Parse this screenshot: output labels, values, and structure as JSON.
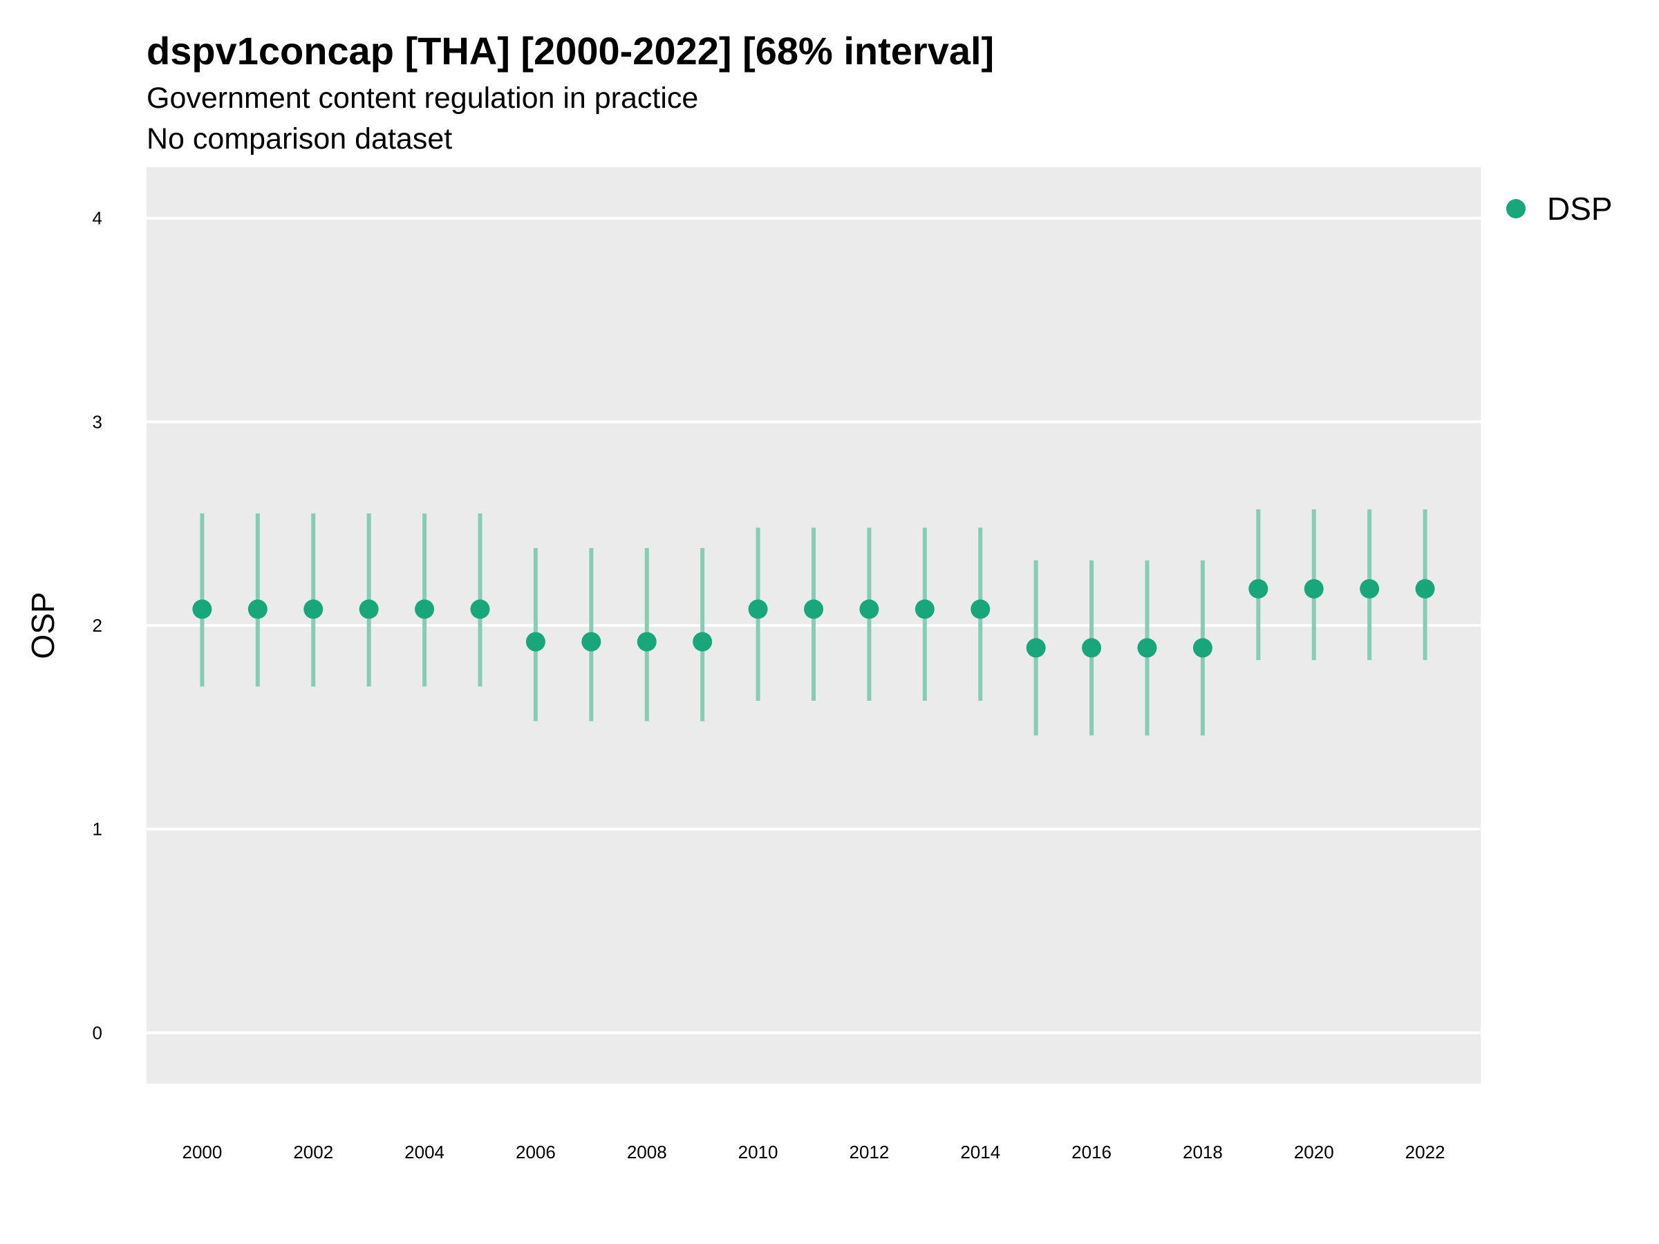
{
  "chart_data": {
    "type": "scatter",
    "title": "dspv1concap [THA] [2000-2022] [68% interval]",
    "subtitle": "Government content regulation in practice",
    "subtitle2": "No comparison dataset",
    "xlabel": "",
    "ylabel": "OSP",
    "xlim": [
      1999,
      2023
    ],
    "ylim": [
      -0.25,
      4.25
    ],
    "x_ticks": [
      "2000",
      "2002",
      "2004",
      "2006",
      "2008",
      "2010",
      "2012",
      "2014",
      "2016",
      "2018",
      "2020",
      "2022"
    ],
    "y_ticks": [
      "0",
      "1",
      "2",
      "3",
      "4"
    ],
    "grid": true,
    "legend_position": "right",
    "series": [
      {
        "name": "DSP",
        "color": "#1aa67b",
        "interval_color": "#86cdb3",
        "x": [
          2000,
          2001,
          2002,
          2003,
          2004,
          2005,
          2006,
          2007,
          2008,
          2009,
          2010,
          2011,
          2012,
          2013,
          2014,
          2015,
          2016,
          2017,
          2018,
          2019,
          2020,
          2021,
          2022
        ],
        "y": [
          2.08,
          2.08,
          2.08,
          2.08,
          2.08,
          2.08,
          1.92,
          1.92,
          1.92,
          1.92,
          2.08,
          2.08,
          2.08,
          2.08,
          2.08,
          1.89,
          1.89,
          1.89,
          1.89,
          2.18,
          2.18,
          2.18,
          2.18
        ],
        "lower": [
          1.7,
          1.7,
          1.7,
          1.7,
          1.7,
          1.7,
          1.53,
          1.53,
          1.53,
          1.53,
          1.63,
          1.63,
          1.63,
          1.63,
          1.63,
          1.46,
          1.46,
          1.46,
          1.46,
          1.83,
          1.83,
          1.83,
          1.83
        ],
        "upper": [
          2.55,
          2.55,
          2.55,
          2.55,
          2.55,
          2.55,
          2.38,
          2.38,
          2.38,
          2.38,
          2.48,
          2.48,
          2.48,
          2.48,
          2.48,
          2.32,
          2.32,
          2.32,
          2.32,
          2.57,
          2.57,
          2.57,
          2.57
        ]
      }
    ]
  }
}
